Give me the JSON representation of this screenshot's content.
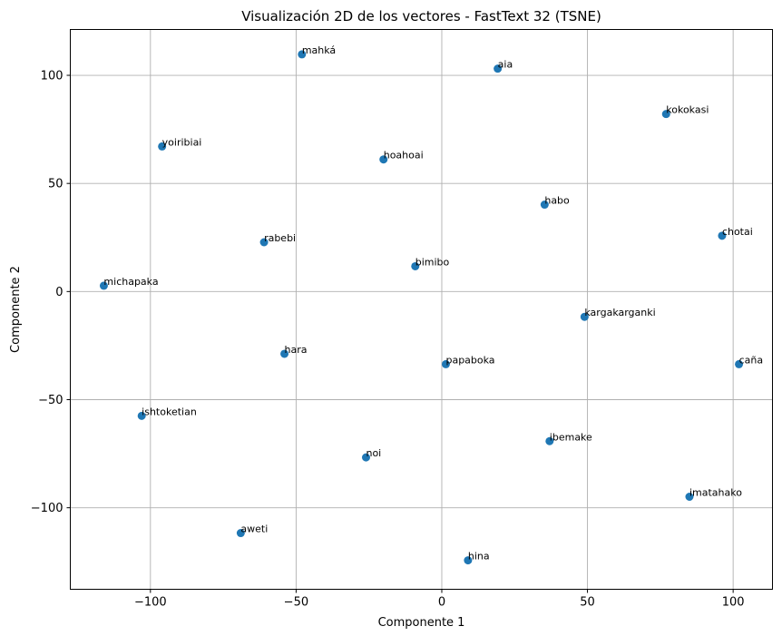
{
  "chart_data": {
    "type": "scatter",
    "title": "Visualización 2D de los vectores - FastText 32 (TSNE)",
    "xlabel": "Componente 1",
    "ylabel": "Componente 2",
    "xlim": [
      -127.5,
      113.5
    ],
    "ylim": [
      -137.7,
      121.2
    ],
    "grid": true,
    "color": "#1f77b4",
    "x_ticks": [
      {
        "value": -100,
        "label": "−100"
      },
      {
        "value": -50,
        "label": "−50"
      },
      {
        "value": 0,
        "label": "0"
      },
      {
        "value": 50,
        "label": "50"
      },
      {
        "value": 100,
        "label": "100"
      }
    ],
    "y_ticks": [
      {
        "value": 100,
        "label": "100"
      },
      {
        "value": 50,
        "label": "50"
      },
      {
        "value": 0,
        "label": "0"
      },
      {
        "value": -50,
        "label": "−50"
      },
      {
        "value": -100,
        "label": "−100"
      }
    ],
    "points": [
      {
        "label": "mahká",
        "x": -48.0,
        "y": 109.7
      },
      {
        "label": "aia",
        "x": 19.2,
        "y": 103.1
      },
      {
        "label": "kokokasi",
        "x": 77.0,
        "y": 82.1
      },
      {
        "label": "yoiribiai",
        "x": -96.0,
        "y": 67.1
      },
      {
        "label": "hoahoai",
        "x": -20.0,
        "y": 61.1
      },
      {
        "label": "habo",
        "x": 35.3,
        "y": 40.2
      },
      {
        "label": "chotai",
        "x": 96.2,
        "y": 25.8
      },
      {
        "label": "rabebi",
        "x": -61.0,
        "y": 22.8
      },
      {
        "label": "bimibo",
        "x": -9.1,
        "y": 11.7
      },
      {
        "label": "michapaka",
        "x": -116.0,
        "y": 2.7
      },
      {
        "label": "kargakarganki",
        "x": 49.0,
        "y": -11.7
      },
      {
        "label": "hara",
        "x": -54.0,
        "y": -28.8
      },
      {
        "label": "papaboka",
        "x": 1.4,
        "y": -33.6
      },
      {
        "label": "caña",
        "x": 102.0,
        "y": -33.6
      },
      {
        "label": "ishtoketian",
        "x": -103.0,
        "y": -57.5
      },
      {
        "label": "ibemake",
        "x": 37.0,
        "y": -69.2
      },
      {
        "label": "noi",
        "x": -26.0,
        "y": -76.7
      },
      {
        "label": "imatahako",
        "x": 85.0,
        "y": -94.9
      },
      {
        "label": "aweti",
        "x": -69.0,
        "y": -111.7
      },
      {
        "label": "hina",
        "x": 9.0,
        "y": -124.3
      }
    ]
  }
}
